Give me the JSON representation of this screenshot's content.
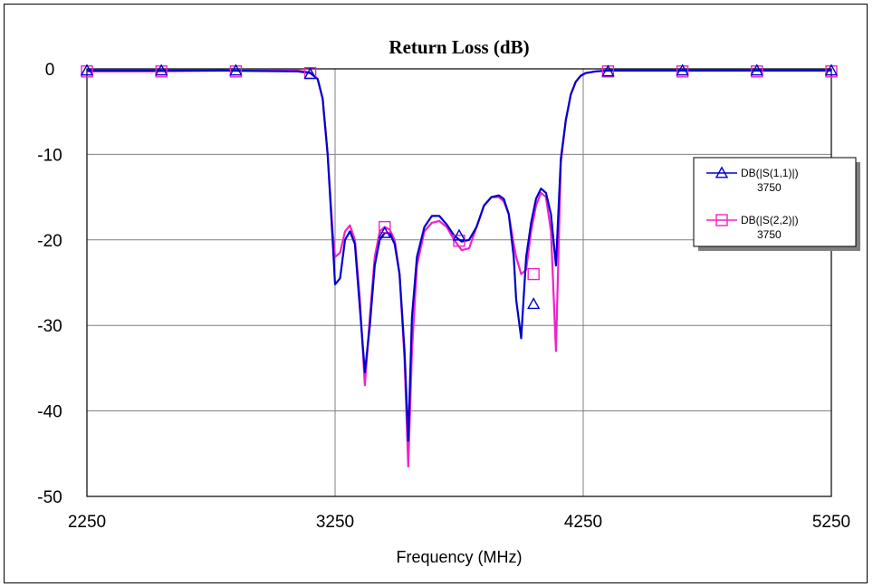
{
  "chart_data": {
    "type": "line",
    "title": "Return Loss (dB)",
    "xlabel": "Frequency (MHz)",
    "ylabel": "",
    "xlim": [
      2250,
      5250
    ],
    "ylim": [
      -50,
      0
    ],
    "xticks": [
      2250,
      3250,
      4250,
      5250
    ],
    "yticks": [
      0,
      -10,
      -20,
      -30,
      -40,
      -50
    ],
    "xtick_labels": [
      "2250",
      "3250",
      "4250",
      "5250"
    ],
    "ytick_labels": [
      "0",
      "-10",
      "-20",
      "-30",
      "-40",
      "-50"
    ],
    "grid": true,
    "legend_position": "right",
    "series": [
      {
        "name": "DB(|S(1,1)|)",
        "sublabel": "3750",
        "color": "#0000cc",
        "marker": "triangle",
        "x": [
          2250,
          2500,
          2800,
          3100,
          3150,
          3180,
          3200,
          3220,
          3240,
          3250,
          3270,
          3290,
          3310,
          3330,
          3350,
          3370,
          3390,
          3410,
          3430,
          3450,
          3470,
          3490,
          3510,
          3530,
          3545,
          3560,
          3580,
          3610,
          3640,
          3670,
          3700,
          3730,
          3760,
          3790,
          3820,
          3850,
          3880,
          3910,
          3930,
          3950,
          3970,
          3980,
          4000,
          4020,
          4040,
          4060,
          4080,
          4100,
          4120,
          4140,
          4160,
          4180,
          4200,
          4220,
          4240,
          4260,
          4300,
          4350,
          4500,
          5250
        ],
        "y": [
          -0.2,
          -0.2,
          -0.2,
          -0.3,
          -0.5,
          -1.2,
          -3.5,
          -10,
          -20,
          -25.2,
          -24.5,
          -20,
          -19,
          -20.5,
          -28,
          -35.5,
          -30,
          -23,
          -20,
          -19.2,
          -19.2,
          -20.5,
          -24,
          -33,
          -43.5,
          -29,
          -22,
          -18.5,
          -17.2,
          -17.2,
          -18.2,
          -19.5,
          -20.2,
          -20,
          -18.5,
          -16,
          -15,
          -14.8,
          -15.2,
          -17,
          -22,
          -27,
          -31.5,
          -22,
          -18,
          -15.2,
          -14,
          -14.5,
          -17,
          -23,
          -10.5,
          -6,
          -3,
          -1.5,
          -0.8,
          -0.5,
          -0.3,
          -0.2,
          -0.2,
          -0.2
        ],
        "marker_points": [
          [
            2250,
            -0.2
          ],
          [
            2550,
            -0.2
          ],
          [
            2850,
            -0.2
          ],
          [
            3150,
            -0.6
          ],
          [
            3450,
            -19.2
          ],
          [
            3750,
            -19.5
          ],
          [
            4050,
            -27.5
          ],
          [
            4350,
            -0.3
          ],
          [
            4650,
            -0.2
          ],
          [
            4950,
            -0.2
          ],
          [
            5250,
            -0.2
          ]
        ]
      },
      {
        "name": "DB(|S(2,2)|)",
        "sublabel": "3750",
        "color": "#ee22cc",
        "marker": "square",
        "x": [
          2250,
          2500,
          2800,
          3100,
          3150,
          3180,
          3200,
          3220,
          3240,
          3250,
          3270,
          3290,
          3310,
          3330,
          3350,
          3370,
          3390,
          3410,
          3430,
          3450,
          3470,
          3490,
          3510,
          3530,
          3545,
          3560,
          3580,
          3610,
          3640,
          3670,
          3700,
          3730,
          3760,
          3790,
          3820,
          3850,
          3880,
          3910,
          3930,
          3950,
          3970,
          3980,
          4000,
          4020,
          4040,
          4060,
          4080,
          4100,
          4120,
          4140,
          4160,
          4180,
          4200,
          4220,
          4240,
          4260,
          4300,
          4350,
          4500,
          5250
        ],
        "y": [
          -0.3,
          -0.3,
          -0.2,
          -0.2,
          -0.4,
          -1.2,
          -3.5,
          -10,
          -19,
          -22,
          -21.5,
          -19,
          -18.3,
          -20,
          -27,
          -37,
          -29,
          -22,
          -19,
          -18.5,
          -18.8,
          -20,
          -24,
          -34,
          -46.5,
          -33,
          -23,
          -19,
          -18,
          -17.8,
          -18.5,
          -20,
          -21.2,
          -21,
          -18.5,
          -16,
          -15,
          -15,
          -15.5,
          -17,
          -20.5,
          -22,
          -24,
          -23.5,
          -19,
          -16,
          -14.5,
          -15,
          -19,
          -33,
          -11,
          -6,
          -3,
          -1.5,
          -0.8,
          -0.5,
          -0.3,
          -0.2,
          -0.2,
          -0.2
        ],
        "marker_points": [
          [
            2250,
            -0.3
          ],
          [
            2550,
            -0.3
          ],
          [
            2850,
            -0.3
          ],
          [
            3150,
            -0.5
          ],
          [
            3450,
            -18.5
          ],
          [
            3750,
            -20.1
          ],
          [
            4050,
            -24
          ],
          [
            4350,
            -0.3
          ],
          [
            4650,
            -0.3
          ],
          [
            4950,
            -0.3
          ],
          [
            5250,
            -0.3
          ]
        ]
      }
    ]
  }
}
